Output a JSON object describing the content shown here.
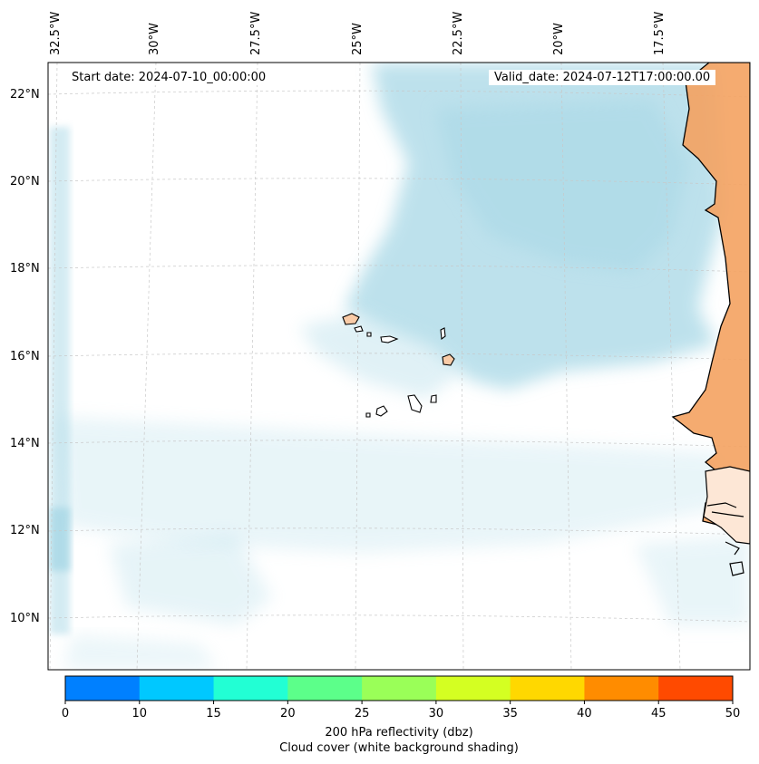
{
  "map": {
    "start_date_label": "Start date: 2024-07-10_00:00:00",
    "valid_date_label": "Valid_date: 2024-07-12T17:00:00.00",
    "lat_labels": [
      "22°N",
      "20°N",
      "18°N",
      "16°N",
      "14°N",
      "12°N",
      "10°N"
    ],
    "lon_labels": [
      "32.5°W",
      "30°W",
      "27.5°W",
      "25°W",
      "22.5°W",
      "20°W",
      "17.5°W"
    ],
    "land_color": "#f4a261",
    "cloud_color": "#a8d8e6"
  },
  "colorbar": {
    "ticks": [
      "0",
      "10",
      "15",
      "20",
      "25",
      "30",
      "35",
      "40",
      "45",
      "50"
    ],
    "colors": [
      "#0080ff",
      "#00c8ff",
      "#22ffd4",
      "#5cff8a",
      "#9aff58",
      "#d4ff22",
      "#ffd800",
      "#ff8c00",
      "#ff4a00"
    ],
    "label_line1": "200 hPa reflectivity (dbz)",
    "label_line2": "Cloud cover (white background shading)"
  }
}
